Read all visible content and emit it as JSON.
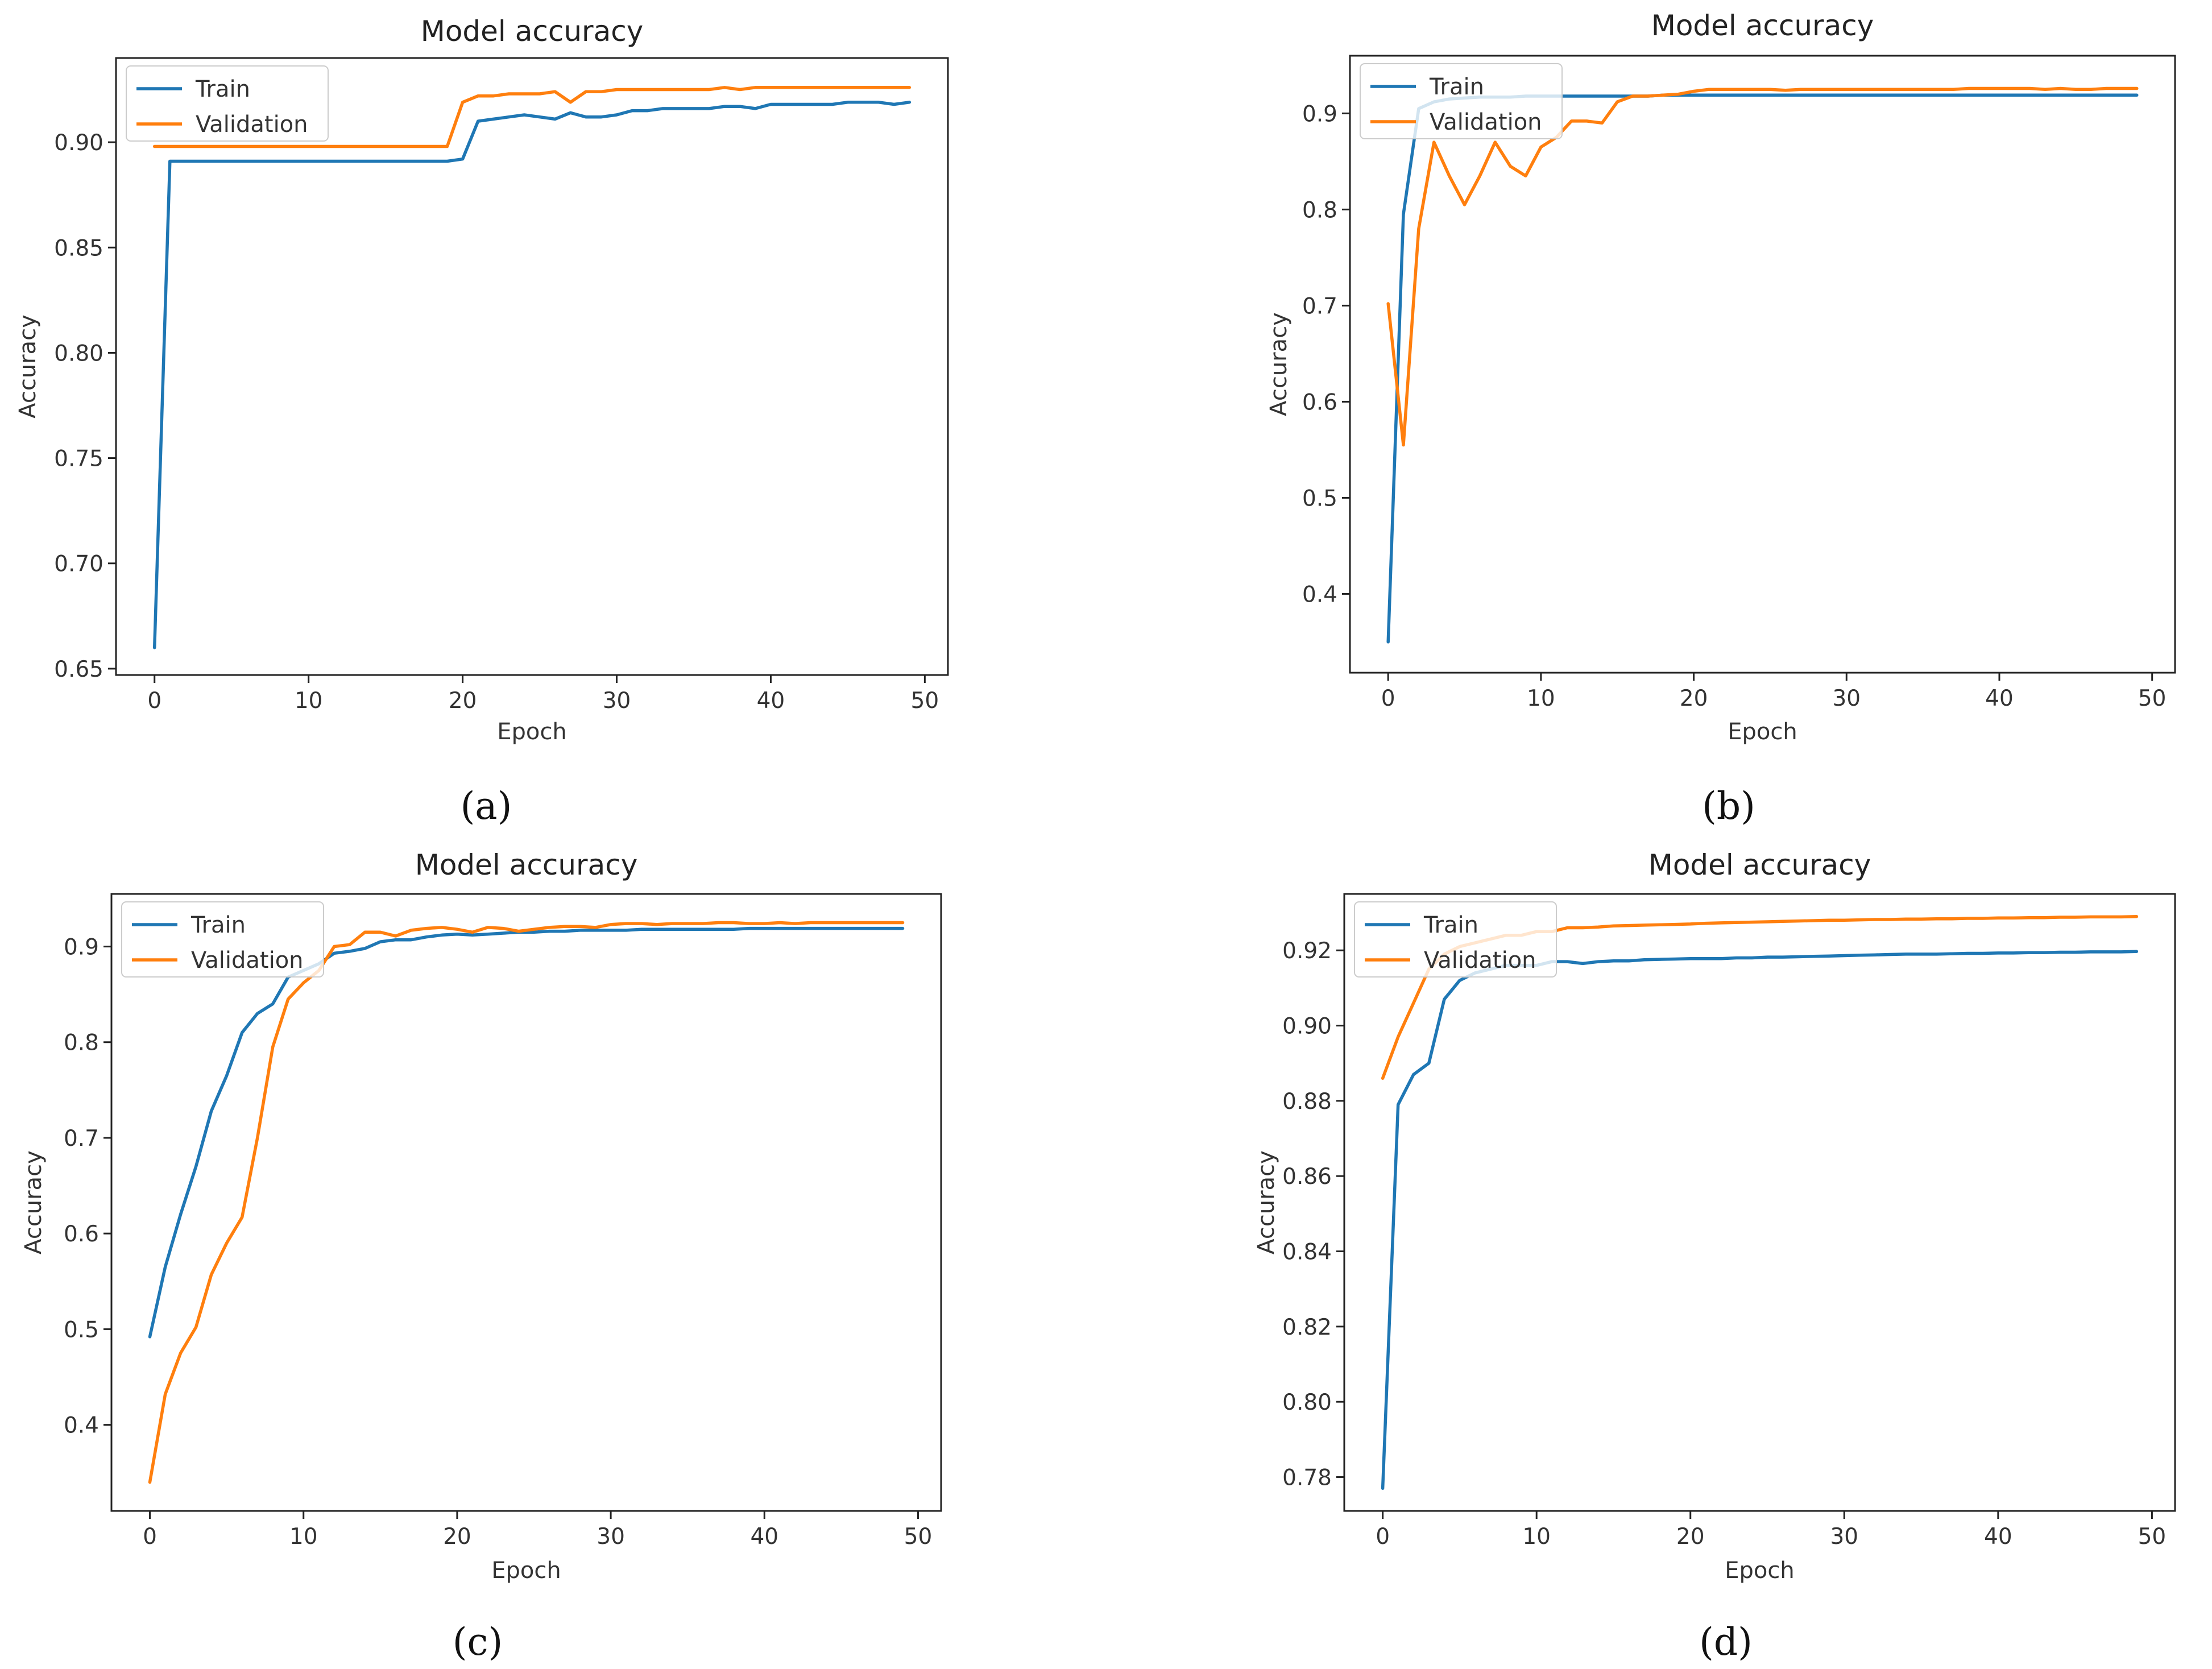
{
  "chart_data": [
    {
      "type": "line",
      "panel": "a",
      "caption": "(a)",
      "title": "Model accuracy",
      "xlabel": "Epoch",
      "ylabel": "Accuracy",
      "xlim": [
        -2.5,
        51.5
      ],
      "ylim": [
        0.647,
        0.94
      ],
      "xticks": [
        0,
        10,
        20,
        30,
        40,
        50
      ],
      "yticks": [
        0.65,
        0.7,
        0.75,
        0.8,
        0.85,
        0.9
      ],
      "ytick_labels": [
        "0.65",
        "0.70",
        "0.75",
        "0.80",
        "0.85",
        "0.90"
      ],
      "legend": {
        "position": "top-left",
        "entries": [
          "Train",
          "Validation"
        ]
      },
      "series": [
        {
          "name": "Train",
          "color": "#1f77b4",
          "values": [
            0.66,
            0.891,
            0.891,
            0.891,
            0.891,
            0.891,
            0.891,
            0.891,
            0.891,
            0.891,
            0.891,
            0.891,
            0.891,
            0.891,
            0.891,
            0.891,
            0.891,
            0.891,
            0.891,
            0.891,
            0.892,
            0.91,
            0.911,
            0.912,
            0.913,
            0.912,
            0.911,
            0.914,
            0.912,
            0.912,
            0.913,
            0.915,
            0.915,
            0.916,
            0.916,
            0.916,
            0.916,
            0.917,
            0.917,
            0.916,
            0.918,
            0.918,
            0.918,
            0.918,
            0.918,
            0.919,
            0.919,
            0.919,
            0.918,
            0.919
          ]
        },
        {
          "name": "Validation",
          "color": "#ff7f0e",
          "values": [
            0.898,
            0.898,
            0.898,
            0.898,
            0.898,
            0.898,
            0.898,
            0.898,
            0.898,
            0.898,
            0.898,
            0.898,
            0.898,
            0.898,
            0.898,
            0.898,
            0.898,
            0.898,
            0.898,
            0.898,
            0.919,
            0.922,
            0.922,
            0.923,
            0.923,
            0.923,
            0.924,
            0.919,
            0.924,
            0.924,
            0.925,
            0.925,
            0.925,
            0.925,
            0.925,
            0.925,
            0.925,
            0.926,
            0.925,
            0.926,
            0.926,
            0.926,
            0.926,
            0.926,
            0.926,
            0.926,
            0.926,
            0.926,
            0.926,
            0.926
          ]
        }
      ]
    },
    {
      "type": "line",
      "panel": "b",
      "caption": "(b)",
      "title": "Model accuracy",
      "xlabel": "Epoch",
      "ylabel": "Accuracy",
      "xlim": [
        -2.5,
        51.5
      ],
      "ylim": [
        0.318,
        0.96
      ],
      "xticks": [
        0,
        10,
        20,
        30,
        40,
        50
      ],
      "yticks": [
        0.4,
        0.5,
        0.6,
        0.7,
        0.8,
        0.9
      ],
      "ytick_labels": [
        "0.4",
        "0.5",
        "0.6",
        "0.7",
        "0.8",
        "0.9"
      ],
      "legend": {
        "position": "top-left",
        "entries": [
          "Train",
          "Validation"
        ]
      },
      "series": [
        {
          "name": "Train",
          "color": "#1f77b4",
          "values": [
            0.35,
            0.795,
            0.905,
            0.912,
            0.915,
            0.916,
            0.917,
            0.917,
            0.917,
            0.918,
            0.918,
            0.918,
            0.918,
            0.918,
            0.918,
            0.918,
            0.918,
            0.918,
            0.919,
            0.919,
            0.919,
            0.919,
            0.919,
            0.919,
            0.919,
            0.919,
            0.919,
            0.919,
            0.919,
            0.919,
            0.919,
            0.919,
            0.919,
            0.919,
            0.919,
            0.919,
            0.919,
            0.919,
            0.919,
            0.919,
            0.919,
            0.919,
            0.919,
            0.919,
            0.919,
            0.919,
            0.919,
            0.919,
            0.919,
            0.919
          ]
        },
        {
          "name": "Validation",
          "color": "#ff7f0e",
          "values": [
            0.702,
            0.555,
            0.78,
            0.87,
            0.835,
            0.805,
            0.835,
            0.87,
            0.845,
            0.835,
            0.865,
            0.875,
            0.892,
            0.892,
            0.89,
            0.912,
            0.918,
            0.918,
            0.919,
            0.92,
            0.923,
            0.925,
            0.925,
            0.925,
            0.925,
            0.925,
            0.924,
            0.925,
            0.925,
            0.925,
            0.925,
            0.925,
            0.925,
            0.925,
            0.925,
            0.925,
            0.925,
            0.925,
            0.926,
            0.926,
            0.926,
            0.926,
            0.926,
            0.925,
            0.926,
            0.925,
            0.925,
            0.926,
            0.926,
            0.926
          ]
        }
      ]
    },
    {
      "type": "line",
      "panel": "c",
      "caption": "(c)",
      "title": "Model accuracy",
      "xlabel": "Epoch",
      "ylabel": "Accuracy",
      "xlim": [
        -2.5,
        51.5
      ],
      "ylim": [
        0.31,
        0.955
      ],
      "xticks": [
        0,
        10,
        20,
        30,
        40,
        50
      ],
      "yticks": [
        0.4,
        0.5,
        0.6,
        0.7,
        0.8,
        0.9
      ],
      "ytick_labels": [
        "0.4",
        "0.5",
        "0.6",
        "0.7",
        "0.8",
        "0.9"
      ],
      "legend": {
        "position": "top-left",
        "entries": [
          "Train",
          "Validation"
        ]
      },
      "series": [
        {
          "name": "Train",
          "color": "#1f77b4",
          "values": [
            0.492,
            0.565,
            0.62,
            0.67,
            0.728,
            0.765,
            0.81,
            0.83,
            0.84,
            0.868,
            0.875,
            0.882,
            0.893,
            0.895,
            0.898,
            0.905,
            0.907,
            0.907,
            0.91,
            0.912,
            0.913,
            0.912,
            0.913,
            0.914,
            0.915,
            0.915,
            0.916,
            0.916,
            0.917,
            0.917,
            0.917,
            0.917,
            0.918,
            0.918,
            0.918,
            0.918,
            0.918,
            0.918,
            0.918,
            0.919,
            0.919,
            0.919,
            0.919,
            0.919,
            0.919,
            0.919,
            0.919,
            0.919,
            0.919,
            0.919
          ]
        },
        {
          "name": "Validation",
          "color": "#ff7f0e",
          "values": [
            0.34,
            0.432,
            0.475,
            0.502,
            0.557,
            0.59,
            0.617,
            0.7,
            0.795,
            0.845,
            0.862,
            0.875,
            0.9,
            0.902,
            0.915,
            0.915,
            0.911,
            0.917,
            0.919,
            0.92,
            0.918,
            0.915,
            0.92,
            0.919,
            0.916,
            0.918,
            0.92,
            0.921,
            0.921,
            0.92,
            0.923,
            0.924,
            0.924,
            0.923,
            0.924,
            0.924,
            0.924,
            0.925,
            0.925,
            0.924,
            0.924,
            0.925,
            0.924,
            0.925,
            0.925,
            0.925,
            0.925,
            0.925,
            0.925,
            0.925
          ]
        }
      ]
    },
    {
      "type": "line",
      "panel": "d",
      "caption": "(d)",
      "title": "Model accuracy",
      "xlabel": "Epoch",
      "ylabel": "Accuracy",
      "xlim": [
        -2.5,
        51.5
      ],
      "ylim": [
        0.771,
        0.935
      ],
      "xticks": [
        0,
        10,
        20,
        30,
        40,
        50
      ],
      "yticks": [
        0.78,
        0.8,
        0.82,
        0.84,
        0.86,
        0.88,
        0.9,
        0.92
      ],
      "ytick_labels": [
        "0.78",
        "0.80",
        "0.82",
        "0.84",
        "0.86",
        "0.88",
        "0.90",
        "0.92"
      ],
      "legend": {
        "position": "top-left",
        "entries": [
          "Train",
          "Validation"
        ]
      },
      "series": [
        {
          "name": "Train",
          "color": "#1f77b4",
          "values": [
            0.777,
            0.879,
            0.887,
            0.89,
            0.907,
            0.912,
            0.914,
            0.915,
            0.916,
            0.916,
            0.916,
            0.917,
            0.917,
            0.9165,
            0.917,
            0.9172,
            0.9172,
            0.9175,
            0.9176,
            0.9177,
            0.9178,
            0.9178,
            0.9178,
            0.918,
            0.918,
            0.9182,
            0.9182,
            0.9183,
            0.9184,
            0.9185,
            0.9186,
            0.9187,
            0.9188,
            0.9189,
            0.919,
            0.919,
            0.919,
            0.9191,
            0.9192,
            0.9192,
            0.9193,
            0.9193,
            0.9194,
            0.9194,
            0.9195,
            0.9195,
            0.9196,
            0.9196,
            0.9196,
            0.9197
          ]
        },
        {
          "name": "Validation",
          "color": "#ff7f0e",
          "values": [
            0.886,
            0.897,
            0.906,
            0.915,
            0.919,
            0.921,
            0.922,
            0.923,
            0.924,
            0.924,
            0.925,
            0.925,
            0.926,
            0.926,
            0.9262,
            0.9265,
            0.9266,
            0.9267,
            0.9268,
            0.9269,
            0.927,
            0.9272,
            0.9273,
            0.9274,
            0.9275,
            0.9276,
            0.9277,
            0.9278,
            0.9279,
            0.928,
            0.928,
            0.9281,
            0.9282,
            0.9282,
            0.9283,
            0.9283,
            0.9284,
            0.9284,
            0.9285,
            0.9285,
            0.9286,
            0.9286,
            0.9287,
            0.9287,
            0.9288,
            0.9288,
            0.9289,
            0.9289,
            0.9289,
            0.929
          ]
        }
      ]
    }
  ]
}
